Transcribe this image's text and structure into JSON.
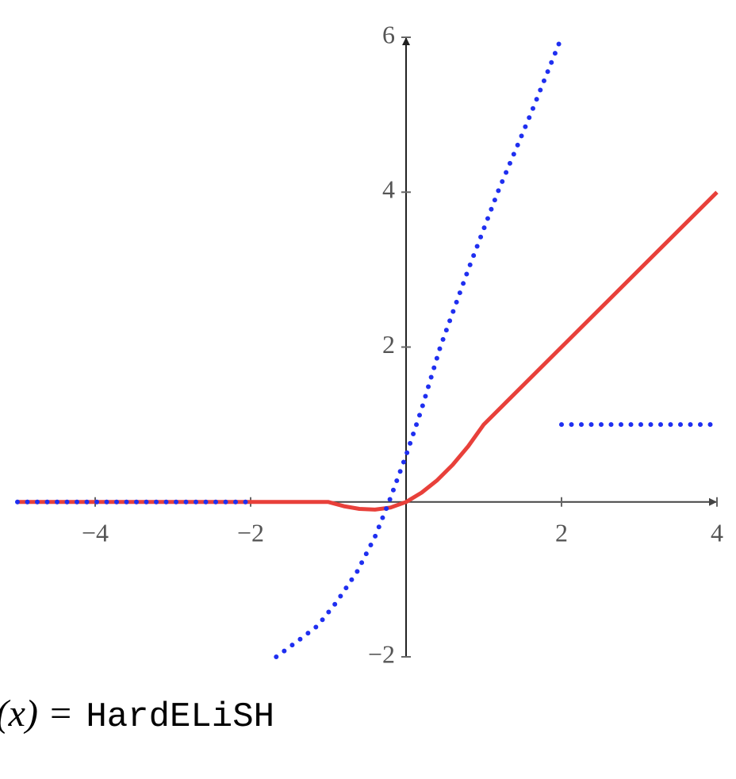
{
  "chart_data": {
    "type": "line",
    "title_math": "y(x) =",
    "title_function": "HardELiSH",
    "xlim": [
      -5,
      4
    ],
    "ylim": [
      -2,
      6
    ],
    "xticks": [
      {
        "value": -4,
        "label": "−4"
      },
      {
        "value": -2,
        "label": "−2"
      },
      2,
      4
    ],
    "yticks": [
      {
        "value": -2,
        "label": "−2"
      },
      2,
      4,
      6
    ],
    "series": [
      {
        "color": "#e8403a",
        "style": "solid",
        "x": [
          -5,
          -1,
          -0.8,
          -0.6,
          -0.4,
          -0.2,
          0,
          0.2,
          0.4,
          0.6,
          0.8,
          1,
          2,
          3,
          4
        ],
        "values": [
          0,
          0,
          -0.055,
          -0.09,
          -0.099,
          -0.072,
          0,
          0.12,
          0.28,
          0.48,
          0.72,
          1,
          2,
          3,
          4
        ]
      },
      {
        "color": "#1f2ff0",
        "style": "dotted",
        "x": [
          -5,
          -2,
          -1.67,
          -1.67,
          -1.4,
          -1.14,
          -0.9,
          -0.63,
          -0.4,
          -0.22,
          0,
          0.2,
          0.44,
          0.8,
          1.18,
          1.6,
          2,
          2,
          2,
          4
        ],
        "values": [
          0,
          0,
          null,
          -2,
          -1.8,
          -1.6,
          -1.3,
          -0.9,
          -0.45,
          0,
          0.6,
          1.2,
          2,
          3,
          4,
          5,
          6,
          null,
          1,
          1
        ]
      }
    ]
  }
}
